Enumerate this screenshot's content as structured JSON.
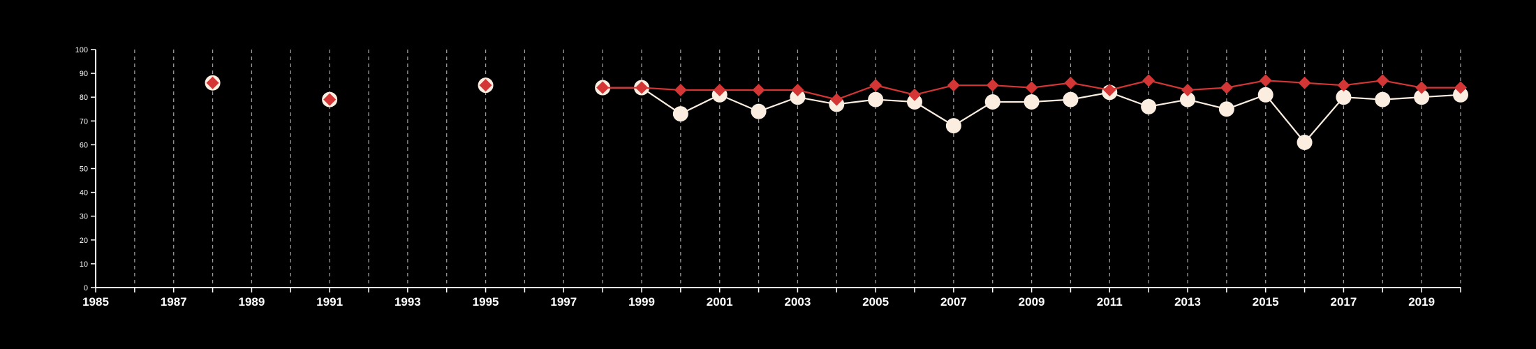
{
  "chart_data": {
    "type": "line",
    "title": "",
    "xlabel": "",
    "ylabel": "",
    "xlim": [
      1985,
      2020
    ],
    "ylim": [
      0,
      100
    ],
    "x_ticks": [
      1985,
      1986,
      1987,
      1988,
      1989,
      1990,
      1991,
      1992,
      1993,
      1994,
      1995,
      1996,
      1997,
      1998,
      1999,
      2000,
      2001,
      2002,
      2003,
      2004,
      2005,
      2006,
      2007,
      2008,
      2009,
      2010,
      2011,
      2012,
      2013,
      2014,
      2015,
      2016,
      2017,
      2018,
      2019,
      2020
    ],
    "x_tick_labels": [
      "1985",
      "1987",
      "1989",
      "1991",
      "1993",
      "1995",
      "1997",
      "1999",
      "2001",
      "2003",
      "2005",
      "2007",
      "2009",
      "2011",
      "2013",
      "2015",
      "2017",
      "2019"
    ],
    "y_ticks": [
      0,
      10,
      20,
      30,
      40,
      50,
      60,
      70,
      80,
      90,
      100
    ],
    "y_tick_labels": [
      "0",
      "10",
      "20",
      "30",
      "40",
      "50",
      "60",
      "70",
      "80",
      "90",
      "100"
    ],
    "grid": "vertical dashed",
    "background_color": "#000000",
    "series": [
      {
        "color": "#fbeee0",
        "marker": "circle",
        "points": [
          [
            1988,
            86
          ],
          [
            1991,
            79
          ],
          [
            1995,
            85
          ],
          [
            1998,
            84
          ],
          [
            1999,
            84
          ],
          [
            2000,
            73
          ],
          [
            2001,
            81
          ],
          [
            2002,
            74
          ],
          [
            2003,
            80
          ],
          [
            2004,
            77
          ],
          [
            2005,
            79
          ],
          [
            2006,
            78
          ],
          [
            2007,
            68
          ],
          [
            2008,
            78
          ],
          [
            2009,
            78
          ],
          [
            2010,
            79
          ],
          [
            2011,
            82
          ],
          [
            2012,
            76
          ],
          [
            2013,
            79
          ],
          [
            2014,
            75
          ],
          [
            2015,
            81
          ],
          [
            2016,
            61
          ],
          [
            2017,
            80
          ],
          [
            2018,
            79
          ],
          [
            2019,
            80
          ],
          [
            2020,
            81
          ]
        ]
      },
      {
        "color": "#d43535",
        "marker": "diamond",
        "points": [
          [
            1988,
            86
          ],
          [
            1991,
            79
          ],
          [
            1995,
            85
          ],
          [
            1998,
            84
          ],
          [
            1999,
            84
          ],
          [
            2000,
            83
          ],
          [
            2001,
            83
          ],
          [
            2002,
            83
          ],
          [
            2003,
            83
          ],
          [
            2004,
            79
          ],
          [
            2005,
            85
          ],
          [
            2006,
            81
          ],
          [
            2007,
            85
          ],
          [
            2008,
            85
          ],
          [
            2009,
            84
          ],
          [
            2010,
            86
          ],
          [
            2011,
            83
          ],
          [
            2012,
            87
          ],
          [
            2013,
            83
          ],
          [
            2014,
            84
          ],
          [
            2015,
            87
          ],
          [
            2016,
            86
          ],
          [
            2017,
            85
          ],
          [
            2018,
            87
          ],
          [
            2019,
            84
          ],
          [
            2020,
            84
          ]
        ]
      }
    ]
  }
}
